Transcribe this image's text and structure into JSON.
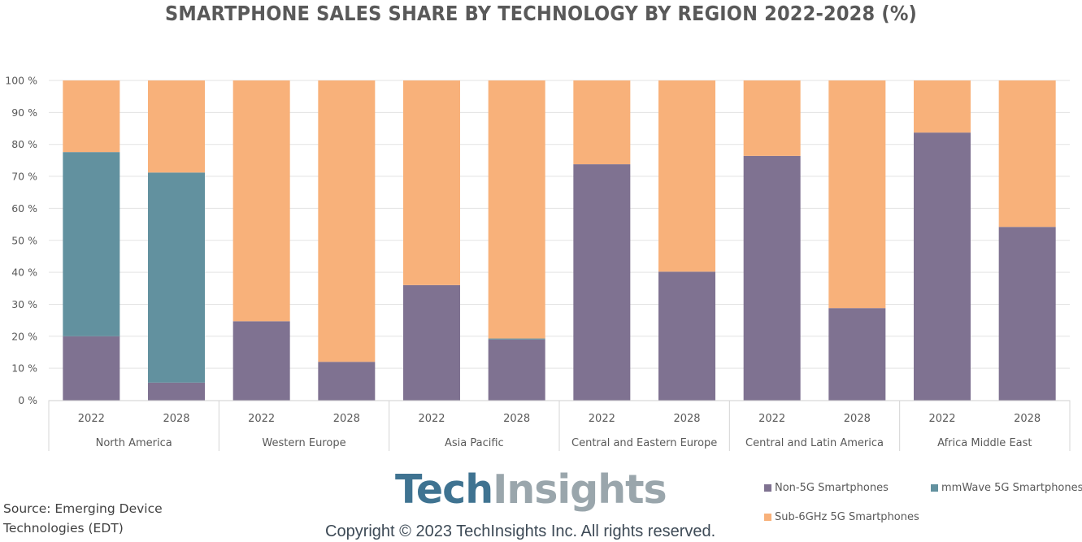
{
  "title": "SMARTPHONE SALES SHARE BY TECHNOLOGY BY REGION 2022-2028 (%)",
  "chart_data": {
    "type": "bar",
    "stacked": true,
    "percent_stacked": true,
    "title": "SMARTPHONE SALES SHARE BY TECHNOLOGY BY REGION 2022-2028 (%)",
    "xlabel": "",
    "ylabel": "",
    "ylim": [
      0,
      100
    ],
    "yticks": [
      "0 %",
      "10 %",
      "20 %",
      "30 %",
      "40 %",
      "50 %",
      "60 %",
      "70 %",
      "80 %",
      "90 %",
      "100 %"
    ],
    "grid": true,
    "legend_position": "bottom-right",
    "groups": [
      {
        "label": "North America",
        "categories": [
          "2022",
          "2028"
        ]
      },
      {
        "label": "Western Europe",
        "categories": [
          "2022",
          "2028"
        ]
      },
      {
        "label": "Asia Pacific",
        "categories": [
          "2022",
          "2028"
        ]
      },
      {
        "label": "Central and Eastern Europe",
        "categories": [
          "2022",
          "2028"
        ]
      },
      {
        "label": "Central and Latin America",
        "categories": [
          "2022",
          "2028"
        ]
      },
      {
        "label": "Africa Middle East",
        "categories": [
          "2022",
          "2028"
        ]
      }
    ],
    "series": [
      {
        "name": "Non-5G Smartphones",
        "color": "#7f7291",
        "values": [
          20.0,
          5.5,
          24.7,
          12.0,
          36.0,
          19.0,
          73.8,
          40.2,
          76.4,
          28.8,
          83.7,
          54.2
        ]
      },
      {
        "name": "mmWave 5G Smartphones",
        "color": "#62919f",
        "values": [
          57.6,
          65.7,
          0,
          0,
          0,
          0.3,
          0,
          0,
          0,
          0,
          0,
          0
        ]
      },
      {
        "name": "Sub-6GHz 5G Smartphones",
        "color": "#f8b17a",
        "values": [
          22.4,
          28.8,
          75.3,
          88.0,
          64.0,
          80.7,
          26.2,
          59.8,
          23.6,
          71.2,
          16.3,
          45.8
        ]
      }
    ]
  },
  "legend": {
    "items": [
      {
        "label": "Non-5G Smartphones",
        "color": "#7f7291"
      },
      {
        "label": "mmWave 5G Smartphones",
        "color": "#62919f"
      },
      {
        "label": "Sub-6GHz 5G Smartphones",
        "color": "#f8b17a"
      }
    ]
  },
  "logo": {
    "part1": "Tech",
    "part2": "Insights"
  },
  "copyright": "Copyright © 2023 TechInsights Inc.  All rights reserved.",
  "source": "Source: Emerging Device Technologies (EDT)"
}
